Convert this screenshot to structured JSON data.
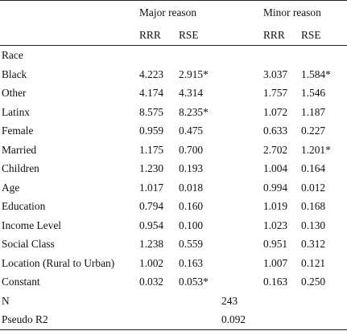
{
  "table": {
    "groups": [
      {
        "label": "Major reason"
      },
      {
        "label": "Minor reason"
      }
    ],
    "subheaders": [
      "RRR",
      "RSE",
      "RRR",
      "RSE"
    ],
    "rows": [
      {
        "label": "Race",
        "values": [
          "",
          "",
          "",
          ""
        ]
      },
      {
        "label": "Black",
        "values": [
          "4.223",
          "2.915*",
          "3.037",
          "1.584*"
        ]
      },
      {
        "label": "Other",
        "values": [
          "4.174",
          "4.314",
          "1.757",
          "1.546"
        ]
      },
      {
        "label": "Latinx",
        "values": [
          "8.575",
          "8.235*",
          "1.072",
          "1.187"
        ]
      },
      {
        "label": "Female",
        "values": [
          "0.959",
          "0.475",
          "0.633",
          "0.227"
        ]
      },
      {
        "label": "Married",
        "values": [
          "1.175",
          "0.700",
          "2.702",
          "1.201*"
        ]
      },
      {
        "label": "Children",
        "values": [
          "1.230",
          "0.193",
          "1.004",
          "0.164"
        ]
      },
      {
        "label": "Age",
        "values": [
          "1.017",
          "0.018",
          "0.994",
          "0.012"
        ]
      },
      {
        "label": "Education",
        "values": [
          "0.794",
          "0.160",
          "1.019",
          "0.168"
        ]
      },
      {
        "label": "Income Level",
        "values": [
          "0.954",
          "0.100",
          "1.023",
          "0.130"
        ]
      },
      {
        "label": "Social Class",
        "values": [
          "1.238",
          "0.559",
          "0.951",
          "0.312"
        ]
      },
      {
        "label": "Location (Rural to Urban)",
        "values": [
          "1.002",
          "0.163",
          "1.007",
          "0.121"
        ]
      },
      {
        "label": "Constant",
        "values": [
          "0.032",
          "0.053*",
          "0.163",
          "0.250"
        ]
      }
    ],
    "footer": [
      {
        "label": "N",
        "value": "243"
      },
      {
        "label": "Pseudo R2",
        "value": "0.092"
      }
    ]
  }
}
